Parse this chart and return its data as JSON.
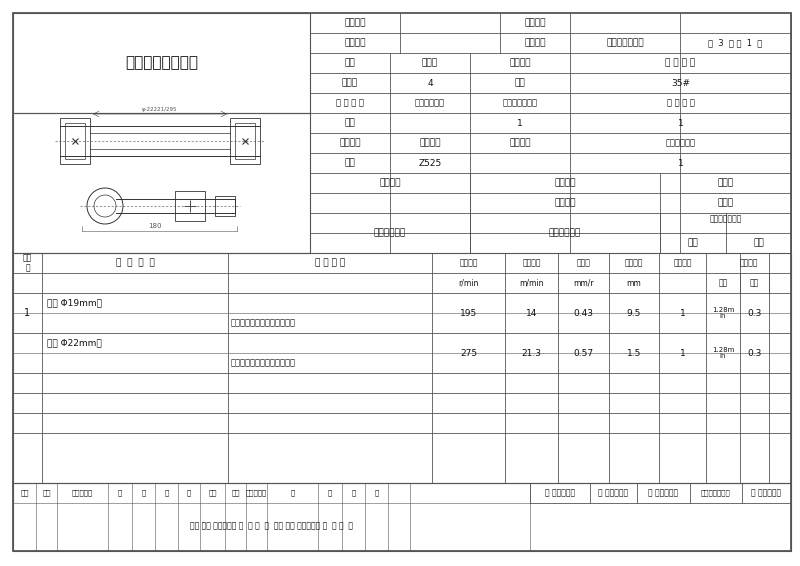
{
  "title": "机械加工工序卡片",
  "product_model_label": "产品型号",
  "product_name_label": "产品名称",
  "part_drawing_label": "零件图号",
  "part_name_label": "零件名称",
  "part_name_value": "前钢板弹簧吊环",
  "page_info": "共  3  页 第  1  页",
  "workshop_label": "车间",
  "process_no_label": "工序号",
  "process_name_label": "工序名称",
  "material_label": "材 料 牌 号",
  "workshop_value": "机加工",
  "process_no_value": "4",
  "process_name_value": "钻扩",
  "material_value": "35#",
  "blank_type_label": "毛 坯 种 类",
  "blank_size_label": "毛坯外形尺寸",
  "parts_per_blank_label": "每毛坯可制件数",
  "parts_per_machine_label": "每 台 件 数",
  "blank_type_value": "锻造",
  "parts_per_blank_value": "1",
  "parts_per_machine_value": "1",
  "equip_name_label": "设备名称",
  "equip_model_label": "设备型号",
  "equip_no_label": "设备编号",
  "simultaneous_label": "同时加工件数",
  "equip_name_value": "钻床",
  "equip_model_value": "Z525",
  "simultaneous_value": "1",
  "fixture_no_label": "夹具编号",
  "fixture_name_label": "夹具名称",
  "cutting_fluid_label": "切削液",
  "cutting_fluid_value": "乳化液",
  "special_fixture": "专用夹具",
  "tool_no_label": "工位器具编号",
  "tool_name_label": "工位器具名称",
  "process_time_label": "工序工时（分）",
  "time_ready_label": "准终",
  "time_unit_label": "单件",
  "step_no_label": "工步\n号",
  "step_content_label": "工  步  内  容",
  "process_equip_label": "工 艺 装 备",
  "spindle_speed_label": "主轴转速\nr/min",
  "cut_speed_label": "切削速度\nm/min",
  "feed_label": "进给量\nmm/r",
  "cut_depth_label": "切削深度\nmm",
  "feed_times_label": "进给次数",
  "step_time_label": "工步工时",
  "step_time_mech_label": "机动",
  "step_time_aux_label": "辅助",
  "row1_step": "1",
  "row1_content": "钻孔 Φ19mm；",
  "row1_equip": "专用夹具，麻花钻，游标卡尺",
  "row1_speed": "195",
  "row1_cut_speed": "14",
  "row1_feed": "0.43",
  "row1_depth": "9.5",
  "row1_feed_times": "1",
  "row1_time_mech": "1.28m\nin",
  "row1_time_aux": "0.3",
  "row2_content": "扩孔 Φ22mm；",
  "row2_equip": "专用夹具，扩孔钻，游标卡尺",
  "row2_speed": "275",
  "row2_cut_speed": "21.3",
  "row2_feed": "0.57",
  "row2_depth": "1.5",
  "row2_feed_times": "1",
  "row2_time_mech": "1.28m\nin",
  "row2_time_aux": "0.3",
  "sign_design": "设 计（日期）",
  "sign_check": "校 对（日期）",
  "sign_review": "审 核（日期）",
  "sign_standard": "标准化（日期）",
  "sign_approve": "会 签（日期）",
  "footer_text": "标记 处数 更改文件号 签  字 日  期  标记 处数 更改文件号 签  字 日  期",
  "bg_color": "#ffffff",
  "line_color": "#555555",
  "text_color": "#111111"
}
